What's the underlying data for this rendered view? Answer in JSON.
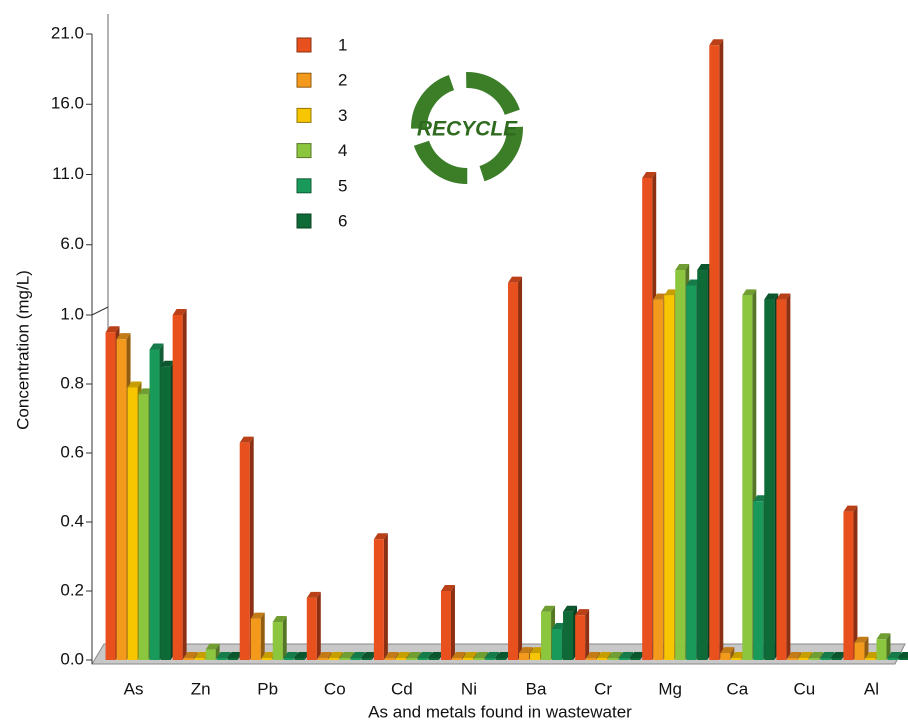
{
  "chart_data": {
    "type": "bar",
    "y_label": "Concentration (mg/L)",
    "x_label": "As and metals found in wastewater",
    "logo_text": "RECYCLE",
    "categories": [
      "As",
      "Zn",
      "Pb",
      "Co",
      "Cd",
      "Ni",
      "Ba",
      "Cr",
      "Mg",
      "Ca",
      "Cu",
      "Al"
    ],
    "series": [
      {
        "name": "1",
        "color": "#e8501e",
        "values": [
          0.95,
          1.0,
          0.63,
          0.18,
          0.35,
          0.2,
          3.3,
          0.13,
          10.75,
          20.2,
          2.1,
          0.43
        ]
      },
      {
        "name": "2",
        "color": "#f39a1c",
        "values": [
          0.93,
          0,
          0.12,
          0,
          0,
          0,
          0.02,
          0,
          2.1,
          0.02,
          0,
          0.05
        ]
      },
      {
        "name": "3",
        "color": "#f7c600",
        "values": [
          0.79,
          0,
          0,
          0,
          0,
          0,
          0.02,
          0,
          2.4,
          0,
          0,
          0
        ]
      },
      {
        "name": "4",
        "color": "#8cc63f",
        "values": [
          0.77,
          0.03,
          0.11,
          0,
          0,
          0,
          0.14,
          0,
          4.2,
          2.4,
          0,
          0.06
        ]
      },
      {
        "name": "5",
        "color": "#1a9a5a",
        "values": [
          0.9,
          0,
          0,
          0,
          0,
          0,
          0.09,
          0,
          3.1,
          0.46,
          0,
          0
        ]
      },
      {
        "name": "6",
        "color": "#0e6b38",
        "values": [
          0.85,
          0,
          0,
          0,
          0,
          0,
          0.14,
          0,
          4.2,
          2.1,
          0,
          0
        ]
      }
    ],
    "ylim": [
      0,
      21
    ],
    "axis_break": 1,
    "yticks": [
      {
        "value": 0,
        "label": "0.0"
      },
      0.2,
      0.4,
      0.6,
      0.8,
      {
        "value": 1,
        "label": "1.0"
      },
      {
        "value": 6,
        "label": "6.0"
      },
      {
        "value": 11,
        "label": "11.0"
      },
      {
        "value": 16,
        "label": "16.0"
      },
      {
        "value": 21,
        "label": "21.0"
      }
    ]
  }
}
